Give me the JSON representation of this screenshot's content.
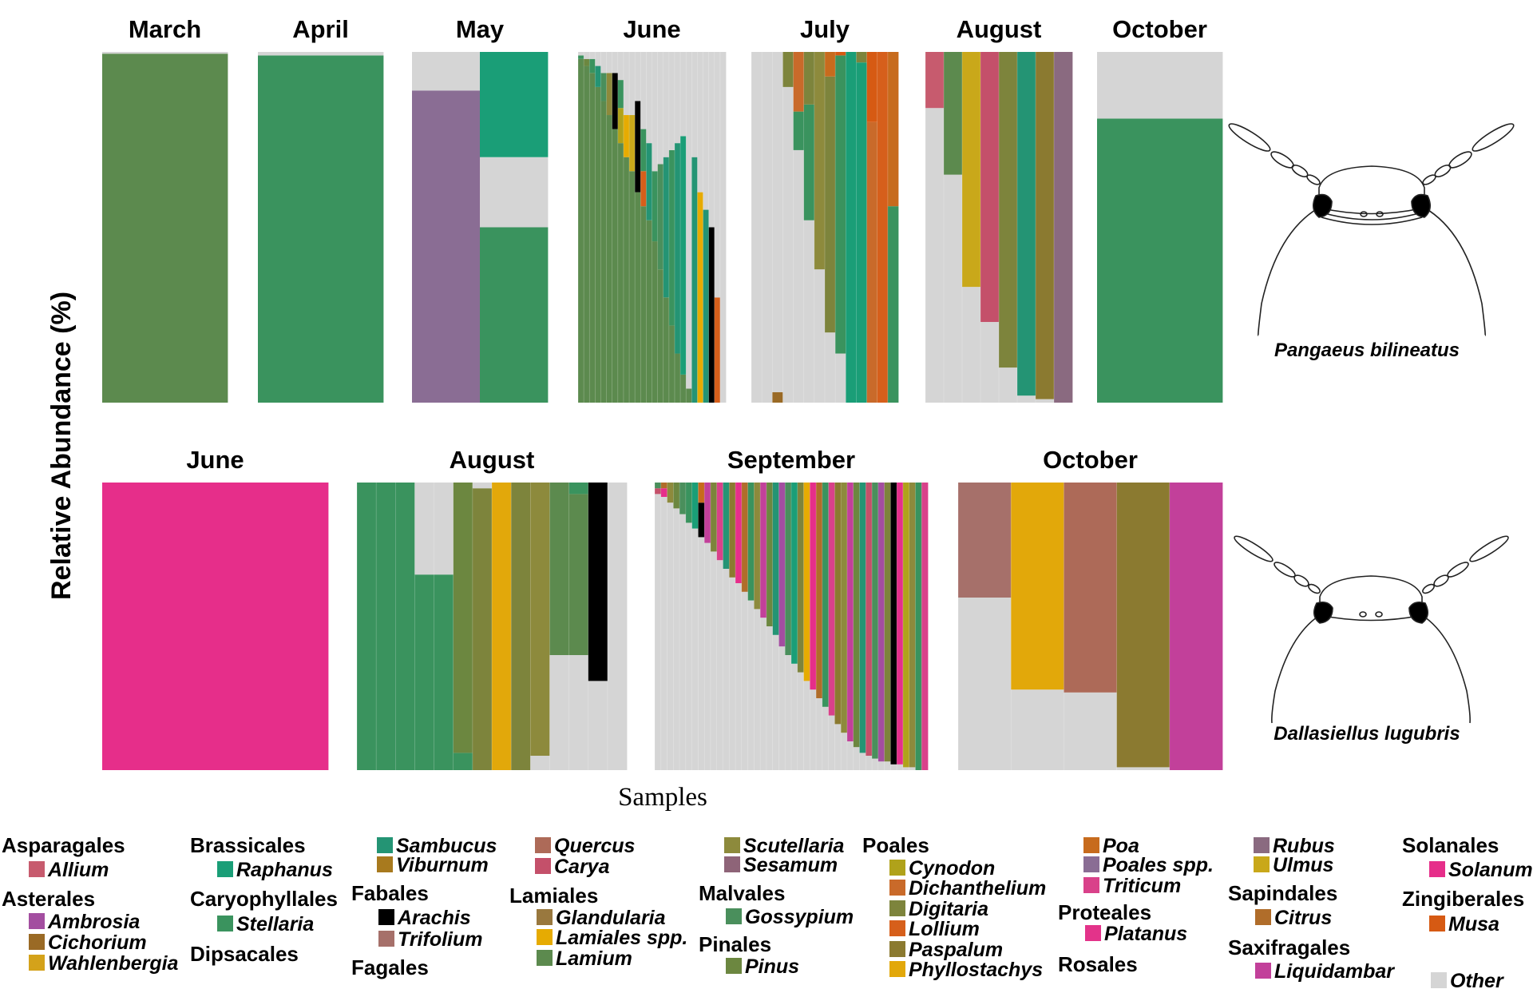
{
  "y_axis_label": "Relative Abundance (%)",
  "x_axis_label": "Samples",
  "species": [
    {
      "name": "Pangaeus bilineatus",
      "icon": "beetle-head-icon"
    },
    {
      "name": "Dallasiellus lugubris",
      "icon": "beetle-head-icon"
    }
  ],
  "colors": {
    "Allium": "#c75b6e",
    "Ambrosia": "#a34ea0",
    "Cichorium": "#9a6a25",
    "Wahlenbergia": "#d4a21a",
    "Raphanus": "#1a9e77",
    "Stellaria": "#3a935e",
    "Sambucus": "#249474",
    "Viburnum": "#a87a1e",
    "Arachis": "#000000",
    "Trifolium": "#a6706a",
    "Quercus": "#ad6a58",
    "Carya": "#c4506a",
    "Glandularia": "#99783e",
    "Lamiales spp.": "#e6ab02",
    "Lamium": "#5c8a4e",
    "Scutellaria": "#8d8a3c",
    "Sesamum": "#8e6478",
    "Gossypium": "#4a8f5c",
    "Pinus": "#6c8740",
    "Cynodon": "#b0a21a",
    "Dichanthelium": "#c96a2a",
    "Digitaria": "#7d843c",
    "Lollium": "#d65f1b",
    "Paspalum": "#8b7a30",
    "Phyllostachys": "#e2a80a",
    "Poa": "#c76b1d",
    "Poales spp.": "#8a6d94",
    "Triticum": "#d9418a",
    "Platanus": "#e3338a",
    "Rubus": "#8a6a80",
    "Ulmus": "#c9a81a",
    "Citrus": "#b06d2a",
    "Liquidambar": "#c2409a",
    "Solanum": "#e62e8a",
    "Musa": "#d65a13",
    "Other": "#d5d5d5"
  },
  "chart_data": [
    {
      "type": "stacked-bar",
      "species": "Pangaeus bilineatus",
      "panel": "March",
      "title": "March",
      "ylim": [
        0,
        100
      ],
      "samples": [
        {
          "Lamium": 99.5,
          "Other": 0.5
        }
      ]
    },
    {
      "type": "stacked-bar",
      "species": "Pangaeus bilineatus",
      "panel": "April",
      "title": "April",
      "ylim": [
        0,
        100
      ],
      "samples": [
        {
          "Stellaria": 99,
          "Other": 1
        }
      ]
    },
    {
      "type": "stacked-bar",
      "species": "Pangaeus bilineatus",
      "panel": "May",
      "title": "May",
      "ylim": [
        0,
        100
      ],
      "samples": [
        {
          "Poales spp.": 89,
          "Other": 11
        },
        {
          "Stellaria": 50,
          "Other": 20,
          "Raphanus": 30
        }
      ]
    },
    {
      "type": "stacked-bar",
      "species": "Pangaeus bilineatus",
      "panel": "June",
      "title": "June",
      "ylim": [
        0,
        100
      ],
      "samples": [
        {
          "Lamium": 98,
          "Stellaria": 1,
          "Other": 1
        },
        {
          "Lamium": 96,
          "Pinus": 2,
          "Other": 2
        },
        {
          "Lamium": 94,
          "Stellaria": 4,
          "Other": 2
        },
        {
          "Lamium": 90,
          "Sambucus": 6,
          "Other": 4
        },
        {
          "Lamium": 86,
          "Gossypium": 8,
          "Other": 6
        },
        {
          "Lamium": 82,
          "Scutellaria": 12,
          "Other": 6
        },
        {
          "Lamium": 78,
          "Arachis": 16,
          "Other": 6
        },
        {
          "Lamium": 74,
          "Cynodon": 10,
          "Stellaria": 8,
          "Other": 8
        },
        {
          "Lamium": 70,
          "Lamiales spp.": 12,
          "Other": 18
        },
        {
          "Lamium": 66,
          "Ulmus": 16,
          "Other": 18
        },
        {
          "Lamium": 60,
          "Arachis": 26,
          "Other": 14
        },
        {
          "Lamium": 56,
          "Lollium": 10,
          "Stellaria": 12,
          "Other": 22
        },
        {
          "Lamium": 52,
          "Sambucus": 22,
          "Other": 26
        },
        {
          "Lamium": 46,
          "Stellaria": 20,
          "Other": 34
        },
        {
          "Lamium": 38,
          "Gossypium": 30,
          "Other": 32
        },
        {
          "Lamium": 30,
          "Sambucus": 40,
          "Other": 30
        },
        {
          "Lamium": 22,
          "Stellaria": 50,
          "Other": 28
        },
        {
          "Lamium": 14,
          "Sambucus": 60,
          "Other": 26
        },
        {
          "Lamium": 8,
          "Raphanus": 68,
          "Other": 24
        },
        {
          "Lamium": 4,
          "Other": 96
        },
        {
          "Sambucus": 70,
          "Other": 30
        },
        {
          "Lamiales spp.": 60,
          "Other": 40
        },
        {
          "Sambucus": 55,
          "Other": 45
        },
        {
          "Arachis": 50,
          "Other": 50
        },
        {
          "Lollium": 30,
          "Other": 70
        },
        {
          "Other": 100
        }
      ]
    },
    {
      "type": "stacked-bar",
      "species": "Pangaeus bilineatus",
      "panel": "July",
      "title": "July",
      "ylim": [
        0,
        100
      ],
      "samples": [
        {
          "Other": 100
        },
        {
          "Other": 100
        },
        {
          "Cichorium": 3,
          "Other": 97
        },
        {
          "Other": 90,
          "Digitaria": 10
        },
        {
          "Other": 72,
          "Stellaria": 11,
          "Dichanthelium": 17
        },
        {
          "Other": 52,
          "Stellaria": 33,
          "Digitaria": 15
        },
        {
          "Other": 38,
          "Scutellaria": 62
        },
        {
          "Other": 20,
          "Digitaria": 73,
          "Poa": 7
        },
        {
          "Other": 14,
          "Stellaria": 85,
          "Musa": 1
        },
        {
          "Raphanus": 100
        },
        {
          "Raphanus": 97,
          "Digitaria": 3
        },
        {
          "Dichanthelium": 80,
          "Musa": 20
        },
        {
          "Lollium": 100
        },
        {
          "Stellaria": 56,
          "Poa": 44
        }
      ]
    },
    {
      "type": "stacked-bar",
      "species": "Pangaeus bilineatus",
      "panel": "August",
      "title": "August",
      "ylim": [
        0,
        100
      ],
      "samples": [
        {
          "Other": 84,
          "Allium": 16
        },
        {
          "Other": 65,
          "Lamium": 35
        },
        {
          "Other": 33,
          "Ulmus": 67
        },
        {
          "Other": 23,
          "Carya": 77
        },
        {
          "Other": 10,
          "Digitaria": 90
        },
        {
          "Other": 2,
          "Sambucus": 98
        },
        {
          "Other": 1,
          "Paspalum": 99
        },
        {
          "Rubus": 100
        }
      ]
    },
    {
      "type": "stacked-bar",
      "species": "Pangaeus bilineatus",
      "panel": "October",
      "title": "October",
      "ylim": [
        0,
        100
      ],
      "samples": [
        {
          "Stellaria": 81,
          "Other": 19
        }
      ]
    },
    {
      "type": "stacked-bar",
      "species": "Dallasiellus lugubris",
      "panel": "June",
      "title": "June",
      "ylim": [
        0,
        100
      ],
      "samples": [
        {
          "Solanum": 100
        }
      ]
    },
    {
      "type": "stacked-bar",
      "species": "Dallasiellus lugubris",
      "panel": "August",
      "title": "August",
      "ylim": [
        0,
        100
      ],
      "samples": [
        {
          "Stellaria": 100
        },
        {
          "Stellaria": 100
        },
        {
          "Stellaria": 100
        },
        {
          "Stellaria": 68,
          "Other": 32
        },
        {
          "Stellaria": 68,
          "Other": 32
        },
        {
          "Stellaria": 6,
          "Pinus": 94
        },
        {
          "Digitaria": 98,
          "Other": 2
        },
        {
          "Phyllostachys": 100
        },
        {
          "Digitaria": 100
        },
        {
          "Other": 5,
          "Scutellaria": 95
        },
        {
          "Other": 40,
          "Lamium": 60
        },
        {
          "Other": 40,
          "Lamium": 56,
          "Stellaria": 4
        },
        {
          "Other": 31,
          "Arachis": 69
        },
        {
          "Other": 100
        }
      ]
    },
    {
      "type": "stacked-bar",
      "species": "Dallasiellus lugubris",
      "panel": "September",
      "title": "September",
      "ylim": [
        0,
        100
      ],
      "samples": [
        {
          "Other": 96,
          "Carya": 2,
          "Gossypium": 2
        },
        {
          "Other": 95,
          "Solanum": 3,
          "Citrus": 2
        },
        {
          "Other": 93,
          "Scutellaria": 7
        },
        {
          "Other": 91,
          "Pinus": 9
        },
        {
          "Other": 89,
          "Gossypium": 11
        },
        {
          "Other": 86,
          "Stellaria": 14
        },
        {
          "Other": 84,
          "Raphanus": 16
        },
        {
          "Other": 81,
          "Arachis": 12,
          "Poa": 7
        },
        {
          "Other": 79,
          "Liquidambar": 21
        },
        {
          "Other": 76,
          "Digitaria": 24
        },
        {
          "Other": 73,
          "Triticum": 27
        },
        {
          "Other": 70,
          "Sambucus": 30
        },
        {
          "Other": 67,
          "Paspalum": 33
        },
        {
          "Other": 65,
          "Solanum": 35
        },
        {
          "Other": 62,
          "Citrus": 38
        },
        {
          "Other": 59,
          "Stellaria": 41
        },
        {
          "Other": 56,
          "Scutellaria": 44
        },
        {
          "Other": 53,
          "Liquidambar": 47
        },
        {
          "Other": 50,
          "Pinus": 50
        },
        {
          "Other": 47,
          "Sambucus": 53
        },
        {
          "Other": 43,
          "Ambrosia": 57
        },
        {
          "Other": 40,
          "Gossypium": 60
        },
        {
          "Other": 37,
          "Raphanus": 63
        },
        {
          "Other": 34,
          "Digitaria": 66
        },
        {
          "Other": 31,
          "Lamiales spp.": 69
        },
        {
          "Other": 28,
          "Solanum": 72
        },
        {
          "Other": 25,
          "Citrus": 75
        },
        {
          "Other": 22,
          "Stellaria": 78
        },
        {
          "Other": 19,
          "Triticum": 81
        },
        {
          "Other": 16,
          "Paspalum": 84
        },
        {
          "Other": 13,
          "Scutellaria": 87
        },
        {
          "Other": 10,
          "Liquidambar": 90
        },
        {
          "Other": 8,
          "Pinus": 92
        },
        {
          "Other": 6,
          "Sambucus": 94
        },
        {
          "Other": 5,
          "Carya": 95
        },
        {
          "Other": 4,
          "Gossypium": 96
        },
        {
          "Other": 3,
          "Ambrosia": 97
        },
        {
          "Other": 3,
          "Digitaria": 97
        },
        {
          "Other": 2,
          "Arachis": 98
        },
        {
          "Other": 2,
          "Solanum": 98
        },
        {
          "Other": 1,
          "Cynodon": 99
        },
        {
          "Other": 1,
          "Scutellaria": 99
        },
        {
          "Stellaria": 100
        },
        {
          "Triticum": 100
        }
      ]
    },
    {
      "type": "stacked-bar",
      "species": "Dallasiellus lugubris",
      "panel": "October",
      "title": "October",
      "ylim": [
        0,
        100
      ],
      "samples": [
        {
          "Other": 60,
          "Trifolium": 40
        },
        {
          "Other": 28,
          "Phyllostachys": 72
        },
        {
          "Other": 27,
          "Quercus": 73
        },
        {
          "Other": 1,
          "Paspalum": 99
        },
        {
          "Liquidambar": 100
        }
      ]
    }
  ],
  "legend": [
    {
      "order": "Asparagales",
      "genera": [
        "Allium"
      ]
    },
    {
      "order": "Asterales",
      "genera": [
        "Ambrosia",
        "Cichorium",
        "Wahlenbergia"
      ]
    },
    {
      "order": "Brassicales",
      "genera": [
        "Raphanus"
      ]
    },
    {
      "order": "Caryophyllales",
      "genera": [
        "Stellaria"
      ]
    },
    {
      "order": "Dipsacales",
      "genera": [
        "Sambucus",
        "Viburnum"
      ]
    },
    {
      "order": "Fabales",
      "genera": [
        "Arachis",
        "Trifolium"
      ]
    },
    {
      "order": "Fagales",
      "genera": [
        "Quercus",
        "Carya"
      ]
    },
    {
      "order": "Lamiales",
      "genera": [
        "Glandularia",
        "Lamiales spp.",
        "Lamium",
        "Scutellaria",
        "Sesamum"
      ]
    },
    {
      "order": "Malvales",
      "genera": [
        "Gossypium"
      ]
    },
    {
      "order": "Pinales",
      "genera": [
        "Pinus"
      ]
    },
    {
      "order": "Poales",
      "genera": [
        "Cynodon",
        "Dichanthelium",
        "Digitaria",
        "Lollium",
        "Paspalum",
        "Phyllostachys",
        "Poa",
        "Poales spp.",
        "Triticum"
      ]
    },
    {
      "order": "Proteales",
      "genera": [
        "Platanus"
      ]
    },
    {
      "order": "Rosales",
      "genera": [
        "Rubus",
        "Ulmus"
      ]
    },
    {
      "order": "Sapindales",
      "genera": [
        "Citrus"
      ]
    },
    {
      "order": "Saxifragales",
      "genera": [
        "Liquidambar"
      ]
    },
    {
      "order": "Solanales",
      "genera": [
        "Solanum"
      ]
    },
    {
      "order": "Zingiberales",
      "genera": [
        "Musa"
      ]
    },
    {
      "order": "",
      "genera": [
        "Other"
      ]
    }
  ]
}
